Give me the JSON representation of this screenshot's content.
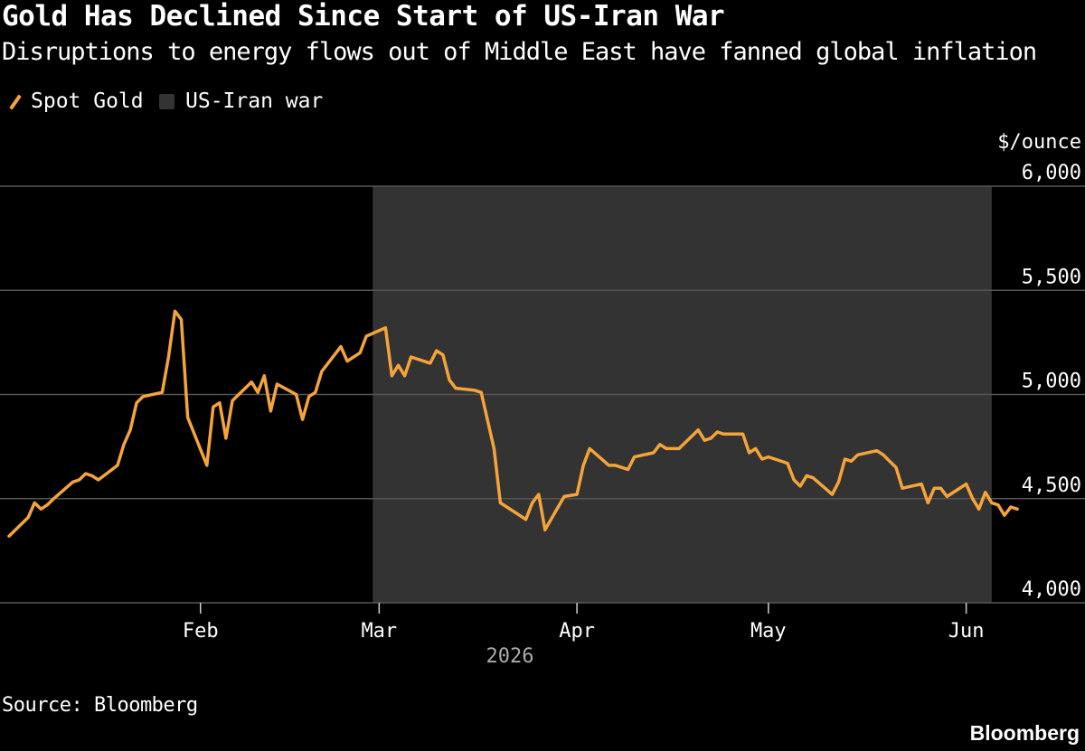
{
  "title": "Gold Has Declined Since Start of US-Iran War",
  "subtitle": "Disruptions to energy flows out of Middle East have fanned global inflation",
  "legend": {
    "gold": "Spot Gold",
    "war": "US-Iran war"
  },
  "source": "Source: Bloomberg",
  "brand": "Bloomberg",
  "colors": {
    "gold": "#f5a43a",
    "war_shade": "#333333",
    "grid": "#555555",
    "background": "#000000"
  },
  "chart_data": {
    "type": "line",
    "ylabel": "$/ounce",
    "ylim": [
      4000,
      6000
    ],
    "yticks": [
      {
        "value": 6000,
        "label": "6,000"
      },
      {
        "value": 5500,
        "label": "5,500"
      },
      {
        "value": 5000,
        "label": "5,000"
      },
      {
        "value": 4500,
        "label": "4,500"
      },
      {
        "value": 4000,
        "label": "4,000"
      }
    ],
    "xlim": [
      "2026-01-02",
      "2026-06-08"
    ],
    "xticks": [
      {
        "date": "2026-02-01",
        "label": "Feb"
      },
      {
        "date": "2026-03-01",
        "label": "Mar"
      },
      {
        "date": "2026-04-01",
        "label": "Apr"
      },
      {
        "date": "2026-05-01",
        "label": "May"
      },
      {
        "date": "2026-06-01",
        "label": "Jun"
      }
    ],
    "year_label": "2026",
    "shaded_range": {
      "name": "US-Iran war",
      "start": "2026-02-28",
      "end": "2026-06-05"
    },
    "legend_position": "top-left",
    "series": [
      {
        "name": "Spot Gold",
        "points": [
          [
            "2026-01-02",
            4320
          ],
          [
            "2026-01-05",
            4410
          ],
          [
            "2026-01-06",
            4480
          ],
          [
            "2026-01-07",
            4450
          ],
          [
            "2026-01-08",
            4470
          ],
          [
            "2026-01-09",
            4500
          ],
          [
            "2026-01-12",
            4580
          ],
          [
            "2026-01-13",
            4590
          ],
          [
            "2026-01-14",
            4620
          ],
          [
            "2026-01-15",
            4610
          ],
          [
            "2026-01-16",
            4590
          ],
          [
            "2026-01-19",
            4660
          ],
          [
            "2026-01-20",
            4760
          ],
          [
            "2026-01-21",
            4830
          ],
          [
            "2026-01-22",
            4960
          ],
          [
            "2026-01-23",
            4990
          ],
          [
            "2026-01-26",
            5010
          ],
          [
            "2026-01-27",
            5180
          ],
          [
            "2026-01-28",
            5400
          ],
          [
            "2026-01-29",
            5360
          ],
          [
            "2026-01-30",
            4890
          ],
          [
            "2026-02-02",
            4660
          ],
          [
            "2026-02-03",
            4940
          ],
          [
            "2026-02-04",
            4960
          ],
          [
            "2026-02-05",
            4790
          ],
          [
            "2026-02-06",
            4970
          ],
          [
            "2026-02-09",
            5060
          ],
          [
            "2026-02-10",
            5010
          ],
          [
            "2026-02-11",
            5090
          ],
          [
            "2026-02-12",
            4920
          ],
          [
            "2026-02-13",
            5050
          ],
          [
            "2026-02-16",
            5000
          ],
          [
            "2026-02-17",
            4880
          ],
          [
            "2026-02-18",
            4990
          ],
          [
            "2026-02-19",
            5010
          ],
          [
            "2026-02-20",
            5110
          ],
          [
            "2026-02-23",
            5230
          ],
          [
            "2026-02-24",
            5160
          ],
          [
            "2026-02-25",
            5180
          ],
          [
            "2026-02-26",
            5200
          ],
          [
            "2026-02-27",
            5280
          ],
          [
            "2026-03-02",
            5320
          ],
          [
            "2026-03-03",
            5090
          ],
          [
            "2026-03-04",
            5140
          ],
          [
            "2026-03-05",
            5090
          ],
          [
            "2026-03-06",
            5180
          ],
          [
            "2026-03-09",
            5150
          ],
          [
            "2026-03-10",
            5210
          ],
          [
            "2026-03-11",
            5190
          ],
          [
            "2026-03-12",
            5070
          ],
          [
            "2026-03-13",
            5030
          ],
          [
            "2026-03-16",
            5020
          ],
          [
            "2026-03-17",
            5010
          ],
          [
            "2026-03-19",
            4740
          ],
          [
            "2026-03-20",
            4480
          ],
          [
            "2026-03-23",
            4420
          ],
          [
            "2026-03-24",
            4400
          ],
          [
            "2026-03-25",
            4480
          ],
          [
            "2026-03-26",
            4520
          ],
          [
            "2026-03-27",
            4350
          ],
          [
            "2026-03-30",
            4510
          ],
          [
            "2026-04-01",
            4520
          ],
          [
            "2026-04-02",
            4660
          ],
          [
            "2026-04-03",
            4740
          ],
          [
            "2026-04-06",
            4660
          ],
          [
            "2026-04-07",
            4660
          ],
          [
            "2026-04-08",
            4650
          ],
          [
            "2026-04-09",
            4640
          ],
          [
            "2026-04-10",
            4700
          ],
          [
            "2026-04-13",
            4720
          ],
          [
            "2026-04-14",
            4760
          ],
          [
            "2026-04-15",
            4740
          ],
          [
            "2026-04-16",
            4740
          ],
          [
            "2026-04-17",
            4740
          ],
          [
            "2026-04-20",
            4830
          ],
          [
            "2026-04-21",
            4780
          ],
          [
            "2026-04-22",
            4790
          ],
          [
            "2026-04-23",
            4820
          ],
          [
            "2026-04-24",
            4810
          ],
          [
            "2026-04-27",
            4810
          ],
          [
            "2026-04-28",
            4720
          ],
          [
            "2026-04-29",
            4740
          ],
          [
            "2026-04-30",
            4690
          ],
          [
            "2026-05-01",
            4700
          ],
          [
            "2026-05-04",
            4670
          ],
          [
            "2026-05-05",
            4590
          ],
          [
            "2026-05-06",
            4560
          ],
          [
            "2026-05-07",
            4610
          ],
          [
            "2026-05-08",
            4600
          ],
          [
            "2026-05-11",
            4520
          ],
          [
            "2026-05-12",
            4580
          ],
          [
            "2026-05-13",
            4690
          ],
          [
            "2026-05-14",
            4680
          ],
          [
            "2026-05-15",
            4710
          ],
          [
            "2026-05-18",
            4730
          ],
          [
            "2026-05-19",
            4710
          ],
          [
            "2026-05-20",
            4680
          ],
          [
            "2026-05-21",
            4650
          ],
          [
            "2026-05-22",
            4550
          ],
          [
            "2026-05-25",
            4570
          ],
          [
            "2026-05-26",
            4480
          ],
          [
            "2026-05-27",
            4550
          ],
          [
            "2026-05-28",
            4550
          ],
          [
            "2026-05-29",
            4510
          ],
          [
            "2026-06-01",
            4570
          ],
          [
            "2026-06-02",
            4500
          ],
          [
            "2026-06-03",
            4450
          ],
          [
            "2026-06-04",
            4530
          ],
          [
            "2026-06-05",
            4480
          ],
          [
            "2026-06-06",
            4470
          ],
          [
            "2026-06-07",
            4420
          ],
          [
            "2026-06-08",
            4460
          ],
          [
            "2026-06-09",
            4450
          ]
        ]
      }
    ]
  }
}
